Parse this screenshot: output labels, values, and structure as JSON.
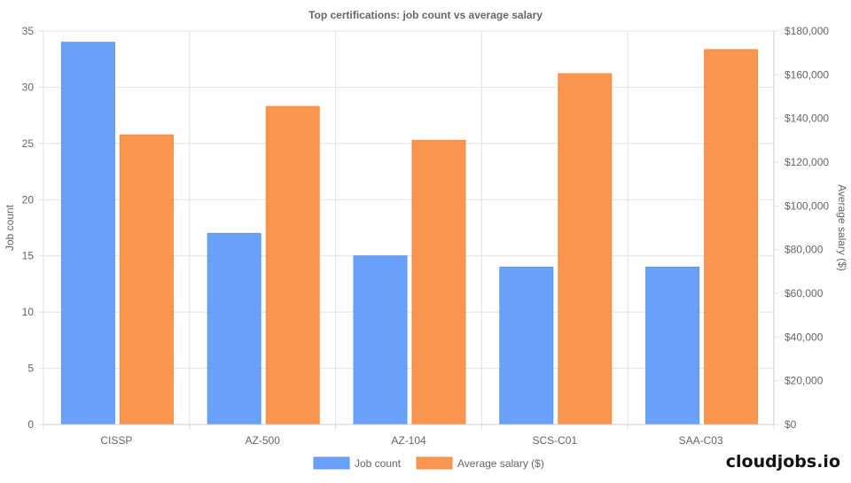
{
  "brand": "cloudjobs.io",
  "chart_data": {
    "type": "bar",
    "title": "Top certifications: job count vs average salary",
    "categories": [
      "CISSP",
      "AZ-500",
      "AZ-104",
      "SCS-C01",
      "SAA-C03"
    ],
    "series": [
      {
        "name": "Job count",
        "axis": "left",
        "color": "#5b96f7",
        "values": [
          34,
          17,
          15,
          14,
          14
        ]
      },
      {
        "name": "Average salary ($)",
        "axis": "right",
        "color": "#f98b3e",
        "values": [
          132500,
          145500,
          130000,
          160500,
          171500
        ]
      }
    ],
    "ylabel": "Job count",
    "ylim": [
      0,
      35
    ],
    "yticks": [
      "0",
      "5",
      "10",
      "15",
      "20",
      "25",
      "30",
      "35"
    ],
    "y2label": "Average salary ($)",
    "y2lim": [
      0,
      180000
    ],
    "y2ticks": [
      "$0",
      "$20,000",
      "$40,000",
      "$60,000",
      "$80,000",
      "$100,000",
      "$120,000",
      "$140,000",
      "$160,000",
      "$180,000"
    ],
    "grid": true,
    "legend": "bottom"
  }
}
